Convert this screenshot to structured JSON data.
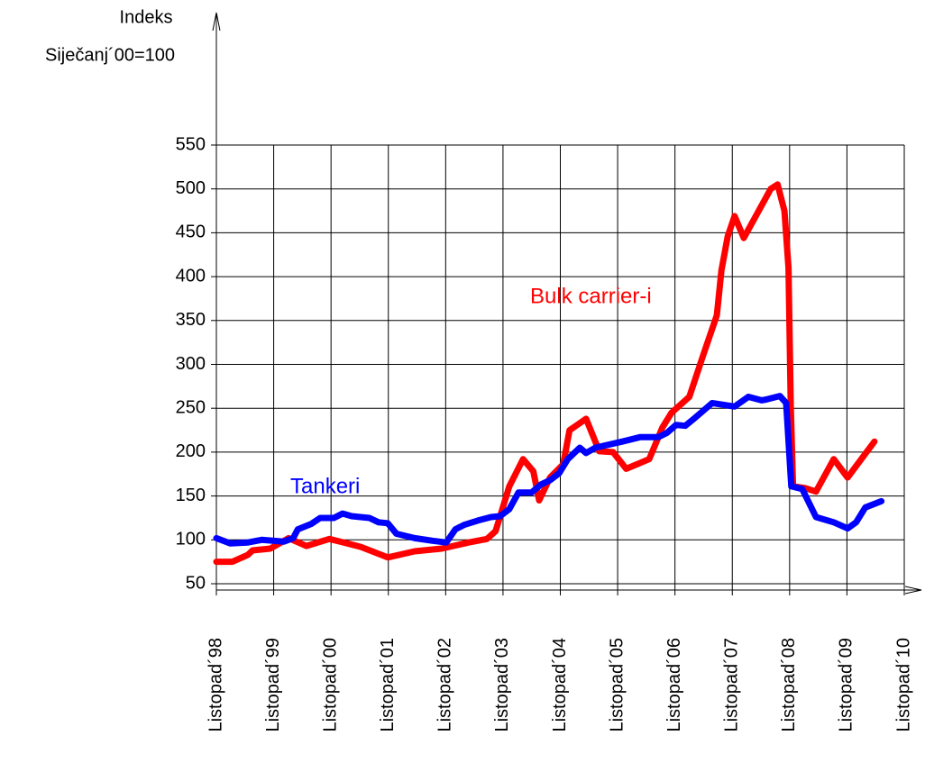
{
  "chart_data": {
    "type": "line",
    "y_label": [
      "Indeks",
      "Siječanj´00=100"
    ],
    "xlim": [
      1998.83,
      2010.83
    ],
    "xticks": [
      {
        "value": 1998.83,
        "label": "Listopad´98"
      },
      {
        "value": 1999.83,
        "label": "Listopad´99"
      },
      {
        "value": 2000.83,
        "label": "Listopad´00"
      },
      {
        "value": 2001.83,
        "label": "Listopad´01"
      },
      {
        "value": 2002.83,
        "label": "Listopad´02"
      },
      {
        "value": 2003.83,
        "label": "Listopad´03"
      },
      {
        "value": 2004.83,
        "label": "Listopad´04"
      },
      {
        "value": 2005.83,
        "label": "Listopad´05"
      },
      {
        "value": 2006.83,
        "label": "Listopad´06"
      },
      {
        "value": 2007.83,
        "label": "Listopad´07"
      },
      {
        "value": 2008.83,
        "label": "Listopad´08"
      },
      {
        "value": 2009.83,
        "label": "Listopad´09"
      },
      {
        "value": 2010.83,
        "label": "Listopad´10"
      }
    ],
    "ylim": [
      50,
      550
    ],
    "yticks": [
      50,
      100,
      150,
      200,
      250,
      300,
      350,
      400,
      450,
      500,
      550
    ],
    "grid": true,
    "series": [
      {
        "name": "Bulk carrier-i",
        "color": "#ff0000",
        "x": [
          1998.83,
          1999.11,
          1999.38,
          1999.46,
          1999.77,
          2000.09,
          2000.4,
          2000.8,
          2001.11,
          2001.35,
          2001.82,
          2002.29,
          2002.76,
          2003.23,
          2003.55,
          2003.7,
          2003.94,
          2004.18,
          2004.36,
          2004.46,
          2004.65,
          2004.88,
          2004.99,
          2005.28,
          2005.51,
          2005.75,
          2005.98,
          2006.38,
          2006.61,
          2006.77,
          2007.08,
          2007.32,
          2007.56,
          2007.64,
          2007.75,
          2007.87,
          2008.03,
          2008.5,
          2008.62,
          2008.74,
          2008.81,
          2008.85,
          2008.89,
          2009.1,
          2009.29,
          2009.6,
          2009.84,
          2010.31
        ],
        "values": [
          75,
          75,
          83,
          88,
          90,
          102,
          93,
          101,
          96,
          92,
          80,
          87,
          90,
          97,
          101,
          110,
          161,
          192,
          178,
          145,
          171,
          186,
          225,
          238,
          201,
          200,
          181,
          192,
          228,
          245,
          263,
          310,
          356,
          407,
          446,
          469,
          444,
          500,
          505,
          475,
          410,
          253,
          161,
          159,
          155,
          192,
          171,
          212
        ]
      },
      {
        "name": "Tankeri",
        "color": "#0000ff",
        "x": [
          1998.83,
          1999.07,
          1999.38,
          1999.62,
          2000.01,
          2000.17,
          2000.25,
          2000.48,
          2000.64,
          2000.88,
          2001.03,
          2001.19,
          2001.5,
          2001.66,
          2001.82,
          2001.97,
          2002.29,
          2002.6,
          2002.84,
          2003.0,
          2003.15,
          2003.39,
          2003.62,
          2003.78,
          2003.94,
          2004.1,
          2004.33,
          2004.49,
          2004.65,
          2004.81,
          2004.96,
          2005.17,
          2005.28,
          2005.44,
          2005.91,
          2006.22,
          2006.54,
          2006.69,
          2006.85,
          2007.01,
          2007.16,
          2007.48,
          2007.87,
          2008.11,
          2008.34,
          2008.42,
          2008.66,
          2008.77,
          2008.86,
          2009.05,
          2009.29,
          2009.6,
          2009.84,
          2009.99,
          2010.15,
          2010.43
        ],
        "values": [
          102,
          96,
          97,
          100,
          98,
          102,
          112,
          118,
          125,
          125,
          130,
          127,
          125,
          120,
          119,
          107,
          102,
          99,
          97,
          112,
          117,
          122,
          126,
          127,
          135,
          154,
          154,
          163,
          168,
          176,
          192,
          205,
          199,
          205,
          212,
          217,
          217,
          222,
          231,
          230,
          238,
          256,
          252,
          263,
          259,
          260,
          264,
          256,
          161,
          158,
          126,
          120,
          113,
          120,
          137,
          144
        ]
      }
    ]
  }
}
